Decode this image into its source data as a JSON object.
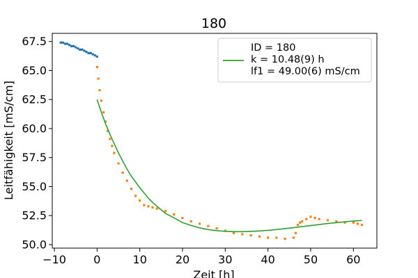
{
  "chart_data": {
    "type": "scatter",
    "title": "180",
    "xlabel": "Zeit [h]",
    "ylabel": "Leitfähigkeit [mS/cm]",
    "xlim": [
      -10.5,
      65.5
    ],
    "ylim": [
      49.7,
      68.2
    ],
    "xticks": [
      -10,
      0,
      10,
      20,
      30,
      40,
      50,
      60
    ],
    "xtick_labels": [
      "−10",
      "0",
      "10",
      "20",
      "30",
      "40",
      "50",
      "60"
    ],
    "yticks": [
      50.0,
      52.5,
      55.0,
      57.5,
      60.0,
      62.5,
      65.0,
      67.5
    ],
    "ytick_labels": [
      "50.0",
      "52.5",
      "55.0",
      "57.5",
      "60.0",
      "62.5",
      "65.0",
      "67.5"
    ],
    "grid": false,
    "legend": {
      "placement": "top-right",
      "entries": [
        "ID = 180",
        "k = 10.48(9) h",
        "lf1 = 49.00(6) mS/cm"
      ]
    },
    "series": [
      {
        "kind": "points",
        "color": "#1f77b4",
        "x": [
          -8.5,
          -8.0,
          -7.5,
          -7.0,
          -6.5,
          -6.0,
          -5.5,
          -5.0,
          -4.5,
          -4.0,
          -3.5,
          -3.0,
          -2.5,
          -2.0,
          -1.5,
          -1.0,
          -0.5,
          0.0
        ],
        "y": [
          67.4,
          67.4,
          67.3,
          67.3,
          67.2,
          67.1,
          67.1,
          67.0,
          66.9,
          66.8,
          66.8,
          66.7,
          66.6,
          66.5,
          66.5,
          66.4,
          66.3,
          66.2
        ]
      },
      {
        "kind": "points",
        "color": "#ff7f0e",
        "x": [
          0.0,
          0.3,
          0.6,
          1.0,
          1.5,
          2.0,
          2.5,
          3.0,
          3.5,
          4.0,
          5.0,
          6.0,
          7.0,
          8.0,
          9.0,
          10.0,
          11.0,
          12.0,
          13.0,
          14.0,
          16.0,
          18.0,
          20.0,
          22.0,
          24.0,
          26.0,
          28.0,
          30.0,
          32.0,
          34.0,
          36.0,
          38.0,
          40.0,
          42.0,
          44.0,
          46.0,
          46.5,
          47.0,
          47.5,
          48.0,
          49.0,
          50.0,
          51.0,
          52.0,
          54.0,
          56.0,
          58.0,
          60.0,
          61.0,
          62.0
        ],
        "y": [
          65.3,
          64.3,
          63.3,
          62.4,
          61.4,
          60.6,
          59.8,
          59.1,
          58.5,
          57.9,
          57.0,
          56.2,
          55.5,
          54.8,
          54.2,
          53.8,
          53.4,
          53.3,
          53.2,
          53.1,
          52.9,
          52.6,
          52.3,
          52.0,
          51.8,
          51.6,
          51.4,
          51.2,
          51.0,
          50.9,
          50.8,
          50.7,
          50.6,
          50.6,
          50.5,
          50.6,
          51.0,
          51.7,
          51.9,
          52.0,
          52.2,
          52.4,
          52.3,
          52.2,
          52.1,
          52.0,
          51.9,
          51.9,
          51.8,
          51.7
        ]
      },
      {
        "kind": "line",
        "color": "#2ca02c",
        "x": [
          0,
          1,
          2,
          3,
          4,
          5,
          6,
          7,
          8,
          9,
          10,
          12,
          14,
          16,
          18,
          20,
          22,
          24,
          26,
          28,
          30,
          32,
          34,
          36,
          38,
          40,
          42,
          44,
          46,
          48,
          50,
          52,
          54,
          56,
          58,
          60,
          62
        ],
        "y": [
          62.5,
          61.4,
          60.4,
          59.5,
          58.7,
          57.9,
          57.2,
          56.5,
          55.9,
          55.4,
          54.9,
          54.0,
          53.3,
          52.7,
          52.3,
          51.9,
          51.65,
          51.45,
          51.3,
          51.2,
          51.15,
          51.12,
          51.12,
          51.14,
          51.18,
          51.23,
          51.3,
          51.38,
          51.46,
          51.55,
          51.64,
          51.73,
          51.82,
          51.9,
          51.97,
          52.03,
          52.08
        ]
      }
    ]
  }
}
